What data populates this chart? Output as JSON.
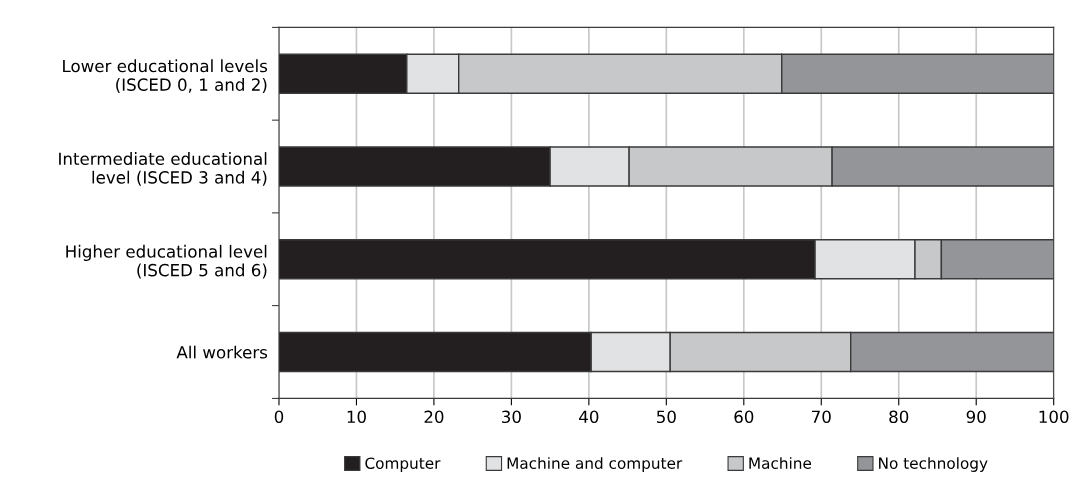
{
  "chart_data": {
    "type": "bar",
    "orientation": "horizontal",
    "stacked": true,
    "categories": [
      "Lower educational levels\n(ISCED 0, 1 and 2)",
      "Intermediate educational\nlevel (ISCED 3 and 4)",
      "Higher educational level\n(ISCED 5 and 6)",
      "All workers"
    ],
    "series": [
      {
        "name": "Computer",
        "color": "#231f20",
        "values": [
          16.5,
          35.0,
          69.2,
          40.3
        ]
      },
      {
        "name": "Machine and computer",
        "color": "#e1e2e3",
        "values": [
          6.7,
          10.2,
          12.9,
          10.2
        ]
      },
      {
        "name": "Machine",
        "color": "#c7c8ca",
        "values": [
          41.7,
          26.2,
          3.4,
          23.3
        ]
      },
      {
        "name": "No technology",
        "color": "#939598",
        "values": [
          35.1,
          28.6,
          14.5,
          26.2
        ]
      }
    ],
    "xlim": [
      0,
      100
    ],
    "xticks": [
      0,
      10,
      20,
      30,
      40,
      50,
      60,
      70,
      80,
      90,
      100
    ],
    "grid": "x",
    "legend": "bottom"
  }
}
